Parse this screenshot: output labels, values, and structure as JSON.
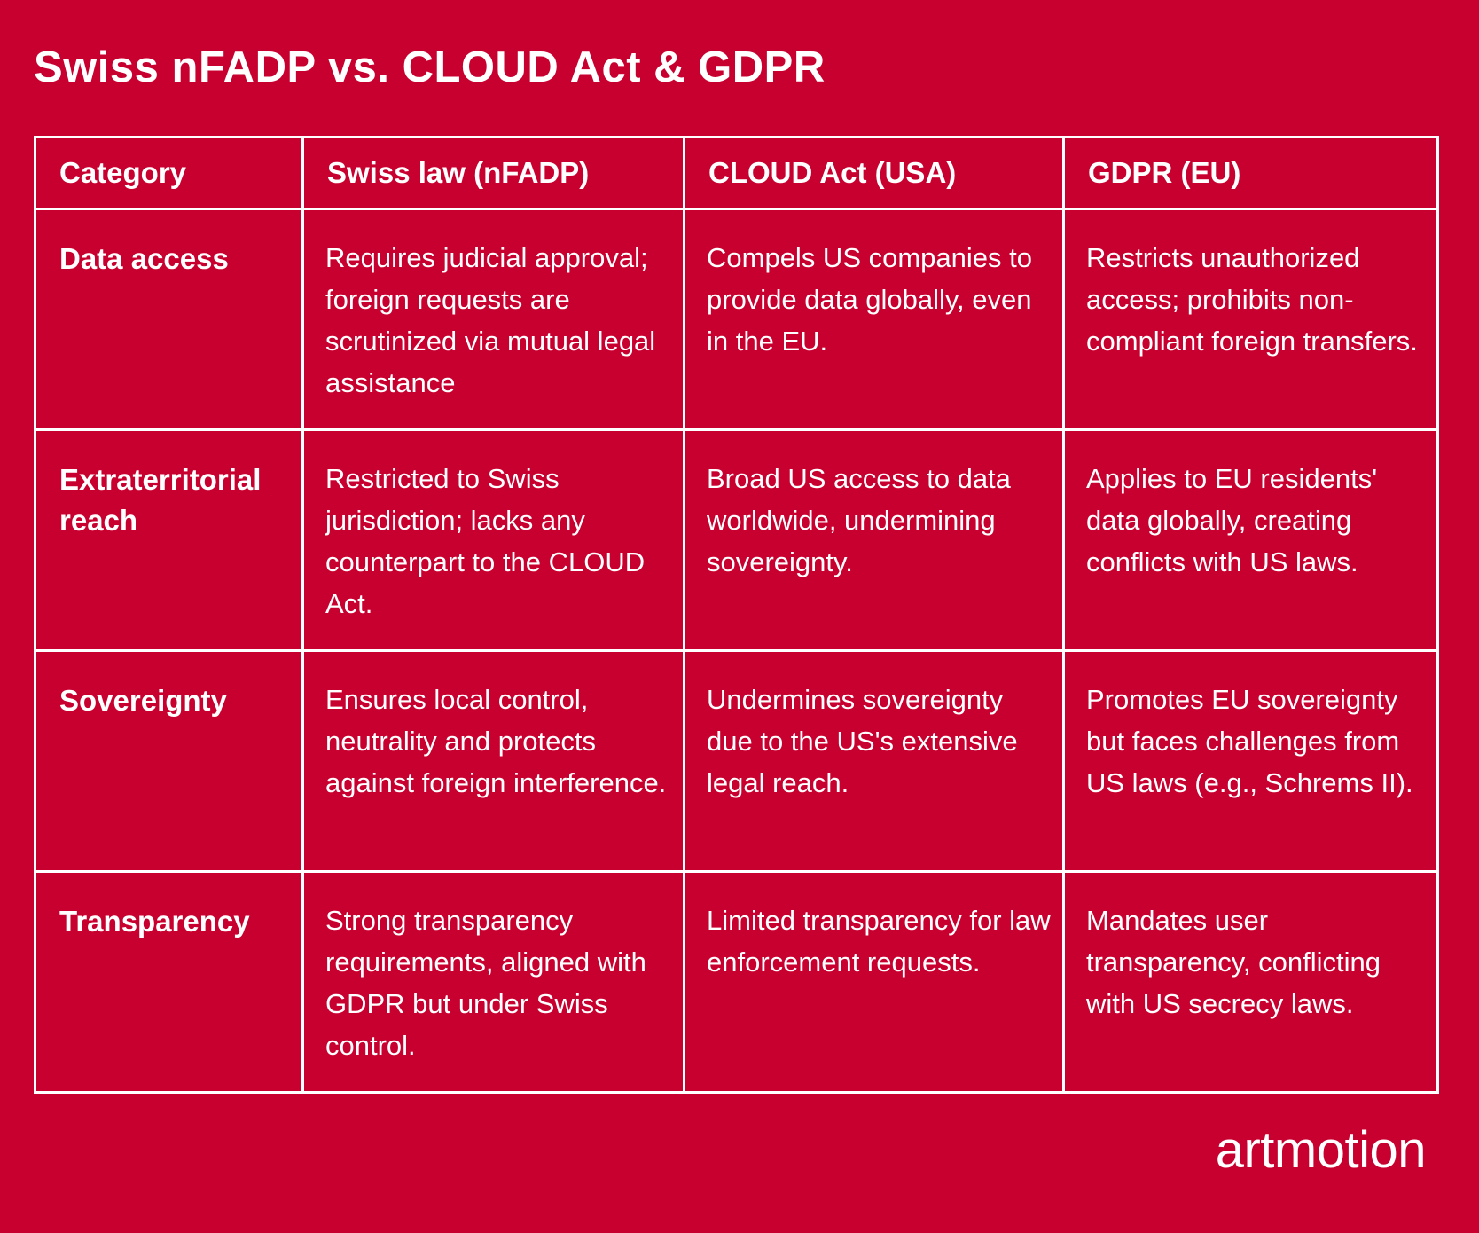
{
  "title": "Swiss nFADP vs. CLOUD Act & GDPR",
  "table": {
    "headers": [
      "Category",
      "Swiss law (nFADP)",
      "CLOUD Act (USA)",
      "GDPR (EU)"
    ],
    "rows": [
      {
        "category": "Data access",
        "swiss": "Requires judicial approval; foreign requests are scrutinized via mutual legal assistance",
        "cloud": "Compels US companies to provide data globally, even in the EU.",
        "gdpr": "Restricts unauthorized access; prohibits non-compliant foreign transfers."
      },
      {
        "category": "Extraterritorial reach",
        "swiss": "Restricted to Swiss jurisdiction; lacks any counterpart to the CLOUD Act.",
        "cloud": "Broad US access to data worldwide, undermining sovereignty.",
        "gdpr": "Applies to EU residents' data globally, creating conflicts with US laws."
      },
      {
        "category": "Sovereignty",
        "swiss": "Ensures local control, neutrality and protects against foreign interference.",
        "cloud": "Undermines sovereignty due to the US's extensive legal reach.",
        "gdpr": "Promotes EU sovereignty but faces challenges from US laws (e.g., Schrems II)."
      },
      {
        "category": "Transparency",
        "swiss": "Strong transparency requirements, aligned with GDPR but under Swiss control.",
        "cloud": "Limited transparency for law enforcement requests.",
        "gdpr": "Mandates user transparency, conflicting with US secrecy laws."
      }
    ]
  },
  "logo": "artmotion",
  "colors": {
    "background": "#c8002f",
    "foreground": "#ffffff"
  }
}
